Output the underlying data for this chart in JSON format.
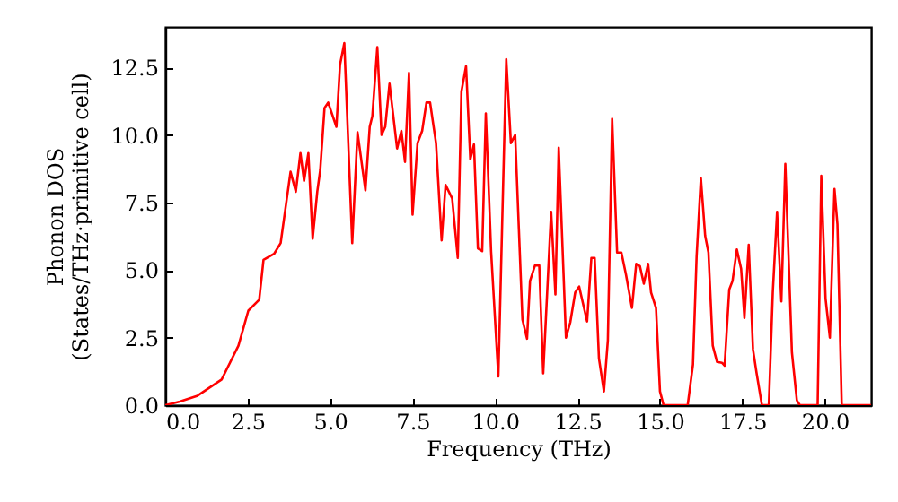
{
  "chart_data": {
    "type": "line",
    "xlabel": "Frequency (THz)",
    "ylabel": "Phonon DOS\n(States/THz·primitive cell)",
    "xlim": [
      0,
      21.4
    ],
    "ylim": [
      0,
      14
    ],
    "xticks": [
      {
        "value": 0,
        "label": "0.0"
      },
      2.5,
      {
        "value": 5,
        "label": "5.0"
      },
      7.5,
      {
        "value": 10,
        "label": "10.0"
      },
      12.5,
      {
        "value": 15,
        "label": "15.0"
      },
      17.5,
      {
        "value": 20,
        "label": "20.0"
      }
    ],
    "yticks": [
      {
        "value": 0,
        "label": "0.0"
      },
      2.5,
      {
        "value": 5,
        "label": "5.0"
      },
      7.5,
      {
        "value": 10,
        "label": "10.0"
      },
      12.5
    ],
    "grid": false,
    "line_style": "solid",
    "marker": "none",
    "x": [
      0,
      0.44,
      0.98,
      1.71,
      2.22,
      2.52,
      2.85,
      2.98,
      3.3,
      3.5,
      3.8,
      3.96,
      4.1,
      4.21,
      4.34,
      4.47,
      4.61,
      4.7,
      4.83,
      4.94,
      5.19,
      5.3,
      5.43,
      5.67,
      5.83,
      6.07,
      6.2,
      6.28,
      6.43,
      6.56,
      6.67,
      6.8,
      7.03,
      7.16,
      7.27,
      7.39,
      7.5,
      7.65,
      7.79,
      7.92,
      8.03,
      8.21,
      8.38,
      8.5,
      8.7,
      8.87,
      8.98,
      9.12,
      9.25,
      9.36,
      9.48,
      9.61,
      9.72,
      9.88,
      10.1,
      10.34,
      10.48,
      10.61,
      10.83,
      10.97,
      11.06,
      11.21,
      11.34,
      11.46,
      11.7,
      11.83,
      11.93,
      12.15,
      12.28,
      12.43,
      12.55,
      12.79,
      12.92,
      13.02,
      13.15,
      13.3,
      13.42,
      13.55,
      13.7,
      13.83,
      13.97,
      14.15,
      14.28,
      14.39,
      14.51,
      14.64,
      14.73,
      14.88,
      15.0,
      15.11,
      15.84,
      16.0,
      16.11,
      16.24,
      16.37,
      16.47,
      16.6,
      16.73,
      16.88,
      16.96,
      17.1,
      17.2,
      17.33,
      17.46,
      17.56,
      17.69,
      17.82,
      17.93,
      18.09,
      18.3,
      18.42,
      18.55,
      18.68,
      18.8,
      19.0,
      19.15,
      19.24,
      19.78,
      19.89,
      20.02,
      20.15,
      20.29,
      20.38,
      20.51,
      21.4
    ],
    "series": [
      {
        "color": "#ff0000",
        "values": [
          0,
          0.13,
          0.35,
          0.95,
          2.2,
          3.5,
          3.9,
          5.38,
          5.6,
          6.0,
          8.64,
          7.9,
          9.33,
          8.3,
          9.33,
          6.16,
          7.9,
          8.7,
          11.0,
          11.2,
          10.3,
          12.6,
          13.4,
          6.0,
          10.1,
          7.95,
          10.3,
          10.7,
          13.25,
          10.0,
          10.3,
          11.9,
          9.5,
          10.15,
          9.0,
          12.3,
          7.05,
          9.7,
          10.15,
          11.2,
          11.2,
          9.7,
          6.1,
          8.15,
          7.65,
          5.45,
          11.6,
          12.55,
          9.1,
          9.65,
          5.8,
          5.7,
          10.8,
          5.7,
          1.06,
          12.8,
          9.7,
          10.0,
          3.17,
          2.46,
          4.6,
          5.17,
          5.17,
          1.18,
          7.16,
          4.1,
          9.53,
          2.5,
          3.06,
          4.17,
          4.39,
          3.1,
          5.45,
          5.45,
          1.73,
          0.51,
          2.4,
          10.6,
          5.65,
          5.65,
          4.83,
          3.6,
          5.23,
          5.15,
          4.5,
          5.23,
          4.17,
          3.6,
          0.51,
          0,
          0,
          1.5,
          5.5,
          8.4,
          6.27,
          5.65,
          2.2,
          1.6,
          1.57,
          1.46,
          4.28,
          4.6,
          5.76,
          5.05,
          3.23,
          5.94,
          2.06,
          1.18,
          0,
          0,
          4.17,
          7.16,
          3.84,
          8.93,
          1.95,
          0.18,
          0,
          0,
          8.49,
          3.94,
          2.5,
          8.0,
          6.7,
          0,
          0
        ]
      }
    ]
  }
}
